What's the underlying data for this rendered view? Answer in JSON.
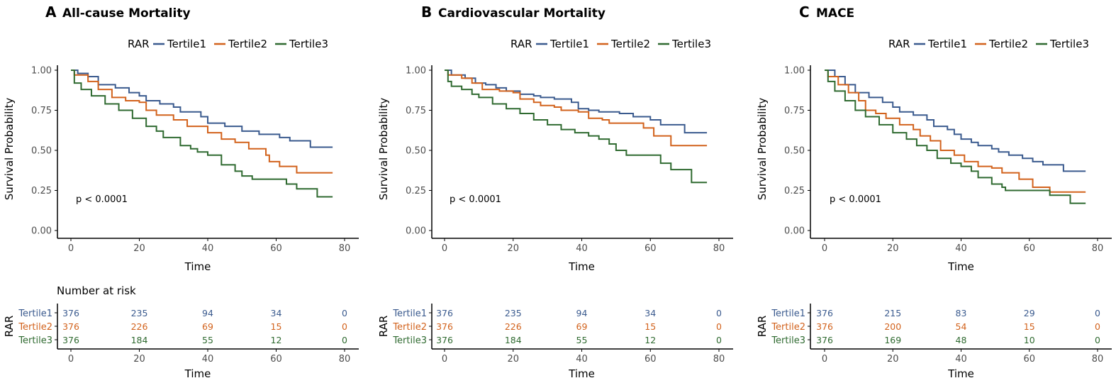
{
  "colors": {
    "Tertile1": "#3a5a8e",
    "Tertile2": "#d2621c",
    "Tertile3": "#2f6a30"
  },
  "chart_data": [
    {
      "type": "line",
      "panel_letter": "A",
      "title": "All-cause Mortality",
      "legend_title": "RAR",
      "legend_placement": "top",
      "xlabel": "Time",
      "ylabel": "Survival Probability",
      "xlim": [
        0,
        80
      ],
      "ylim": [
        0,
        1
      ],
      "xticks": [
        "0",
        "20",
        "40",
        "60",
        "80"
      ],
      "yticks": [
        "0.00",
        "0.25",
        "0.50",
        "0.75",
        "1.00"
      ],
      "pvalue": "p < 0.0001",
      "end_time": 76.5,
      "series": [
        {
          "name": "Tertile1",
          "steps": [
            [
              0,
              1
            ],
            [
              2,
              0.98
            ],
            [
              5,
              0.96
            ],
            [
              8,
              0.91
            ],
            [
              13,
              0.89
            ],
            [
              17,
              0.86
            ],
            [
              20,
              0.84
            ],
            [
              22,
              0.81
            ],
            [
              26,
              0.79
            ],
            [
              30,
              0.77
            ],
            [
              32,
              0.74
            ],
            [
              38,
              0.71
            ],
            [
              40,
              0.67
            ],
            [
              45,
              0.65
            ],
            [
              50,
              0.62
            ],
            [
              55,
              0.6
            ],
            [
              61,
              0.58
            ],
            [
              64,
              0.56
            ],
            [
              70,
              0.52
            ]
          ]
        },
        {
          "name": "Tertile2",
          "steps": [
            [
              0,
              1
            ],
            [
              1,
              0.97
            ],
            [
              5,
              0.93
            ],
            [
              8,
              0.88
            ],
            [
              12,
              0.83
            ],
            [
              16,
              0.81
            ],
            [
              20,
              0.8
            ],
            [
              22,
              0.75
            ],
            [
              25,
              0.72
            ],
            [
              30,
              0.69
            ],
            [
              34,
              0.65
            ],
            [
              40,
              0.61
            ],
            [
              44,
              0.57
            ],
            [
              48,
              0.55
            ],
            [
              52,
              0.51
            ],
            [
              57,
              0.47
            ],
            [
              58,
              0.43
            ],
            [
              61,
              0.4
            ],
            [
              66,
              0.36
            ]
          ]
        },
        {
          "name": "Tertile3",
          "steps": [
            [
              0,
              1
            ],
            [
              1,
              0.92
            ],
            [
              3,
              0.88
            ],
            [
              6,
              0.84
            ],
            [
              10,
              0.79
            ],
            [
              14,
              0.75
            ],
            [
              18,
              0.7
            ],
            [
              22,
              0.65
            ],
            [
              25,
              0.62
            ],
            [
              27,
              0.58
            ],
            [
              32,
              0.53
            ],
            [
              35,
              0.51
            ],
            [
              37,
              0.49
            ],
            [
              40,
              0.47
            ],
            [
              44,
              0.41
            ],
            [
              48,
              0.37
            ],
            [
              50,
              0.34
            ],
            [
              53,
              0.32
            ],
            [
              63,
              0.29
            ],
            [
              66,
              0.26
            ],
            [
              72,
              0.21
            ]
          ]
        }
      ],
      "risk_table": {
        "title": "Number at risk",
        "ylabel": "RAR",
        "xlabel": "Time",
        "times": [
          "0",
          "20",
          "40",
          "60",
          "80"
        ],
        "rows": [
          {
            "name": "Tertile1",
            "values": [
              "376",
              "235",
              "94",
              "34",
              "0"
            ]
          },
          {
            "name": "Tertile2",
            "values": [
              "376",
              "226",
              "69",
              "15",
              "0"
            ]
          },
          {
            "name": "Tertile3",
            "values": [
              "376",
              "184",
              "55",
              "12",
              "0"
            ]
          }
        ]
      }
    },
    {
      "type": "line",
      "panel_letter": "B",
      "title": "Cardiovascular Mortality",
      "legend_title": "RAR",
      "legend_placement": "top",
      "xlabel": "Time",
      "ylabel": "Survival Probability",
      "xlim": [
        0,
        80
      ],
      "ylim": [
        0,
        1
      ],
      "xticks": [
        "0",
        "20",
        "40",
        "60",
        "80"
      ],
      "yticks": [
        "0.00",
        "0.25",
        "0.50",
        "0.75",
        "1.00"
      ],
      "pvalue": "p < 0.0001",
      "end_time": 76.5,
      "series": [
        {
          "name": "Tertile1",
          "steps": [
            [
              0,
              1
            ],
            [
              2,
              0.97
            ],
            [
              6,
              0.95
            ],
            [
              9,
              0.92
            ],
            [
              12,
              0.91
            ],
            [
              15,
              0.89
            ],
            [
              18,
              0.87
            ],
            [
              22,
              0.85
            ],
            [
              26,
              0.84
            ],
            [
              28,
              0.83
            ],
            [
              32,
              0.82
            ],
            [
              37,
              0.8
            ],
            [
              39,
              0.76
            ],
            [
              42,
              0.75
            ],
            [
              45,
              0.74
            ],
            [
              51,
              0.73
            ],
            [
              55,
              0.71
            ],
            [
              60,
              0.69
            ],
            [
              63,
              0.66
            ],
            [
              70,
              0.61
            ]
          ]
        },
        {
          "name": "Tertile2",
          "steps": [
            [
              0,
              1
            ],
            [
              1,
              0.97
            ],
            [
              5,
              0.95
            ],
            [
              8,
              0.92
            ],
            [
              11,
              0.88
            ],
            [
              16,
              0.87
            ],
            [
              20,
              0.86
            ],
            [
              22,
              0.82
            ],
            [
              26,
              0.8
            ],
            [
              28,
              0.78
            ],
            [
              32,
              0.77
            ],
            [
              34,
              0.75
            ],
            [
              39,
              0.74
            ],
            [
              42,
              0.7
            ],
            [
              46,
              0.69
            ],
            [
              48,
              0.67
            ],
            [
              58,
              0.64
            ],
            [
              61,
              0.59
            ],
            [
              66,
              0.53
            ]
          ]
        },
        {
          "name": "Tertile3",
          "steps": [
            [
              0,
              1
            ],
            [
              1,
              0.93
            ],
            [
              2,
              0.9
            ],
            [
              5,
              0.88
            ],
            [
              8,
              0.85
            ],
            [
              10,
              0.83
            ],
            [
              14,
              0.79
            ],
            [
              18,
              0.76
            ],
            [
              22,
              0.73
            ],
            [
              26,
              0.69
            ],
            [
              30,
              0.66
            ],
            [
              34,
              0.63
            ],
            [
              38,
              0.61
            ],
            [
              42,
              0.59
            ],
            [
              45,
              0.57
            ],
            [
              48,
              0.54
            ],
            [
              50,
              0.5
            ],
            [
              53,
              0.47
            ],
            [
              63,
              0.42
            ],
            [
              66,
              0.38
            ],
            [
              72,
              0.3
            ]
          ]
        }
      ],
      "risk_table": {
        "title": "",
        "ylabel": "RAR",
        "xlabel": "Time",
        "times": [
          "0",
          "20",
          "40",
          "60",
          "80"
        ],
        "rows": [
          {
            "name": "Tertile1",
            "values": [
              "376",
              "235",
              "94",
              "34",
              "0"
            ]
          },
          {
            "name": "Tertile2",
            "values": [
              "376",
              "226",
              "69",
              "15",
              "0"
            ]
          },
          {
            "name": "Tertile3",
            "values": [
              "376",
              "184",
              "55",
              "12",
              "0"
            ]
          }
        ]
      }
    },
    {
      "type": "line",
      "panel_letter": "C",
      "title": "MACE",
      "legend_title": "RAR",
      "legend_placement": "top",
      "xlabel": "Time",
      "ylabel": "Survival Probability",
      "xlim": [
        0,
        80
      ],
      "ylim": [
        0,
        1
      ],
      "xticks": [
        "0",
        "20",
        "40",
        "60",
        "80"
      ],
      "yticks": [
        "0.00",
        "0.25",
        "0.50",
        "0.75",
        "1.00"
      ],
      "pvalue": "p < 0.0001",
      "end_time": 76.5,
      "series": [
        {
          "name": "Tertile1",
          "steps": [
            [
              0,
              1
            ],
            [
              3,
              0.96
            ],
            [
              6,
              0.91
            ],
            [
              9,
              0.86
            ],
            [
              13,
              0.83
            ],
            [
              17,
              0.8
            ],
            [
              20,
              0.77
            ],
            [
              22,
              0.74
            ],
            [
              26,
              0.72
            ],
            [
              30,
              0.69
            ],
            [
              32,
              0.65
            ],
            [
              36,
              0.63
            ],
            [
              38,
              0.6
            ],
            [
              40,
              0.57
            ],
            [
              43,
              0.55
            ],
            [
              45,
              0.53
            ],
            [
              49,
              0.51
            ],
            [
              51,
              0.49
            ],
            [
              54,
              0.47
            ],
            [
              58,
              0.45
            ],
            [
              61,
              0.43
            ],
            [
              64,
              0.41
            ],
            [
              70,
              0.37
            ]
          ]
        },
        {
          "name": "Tertile2",
          "steps": [
            [
              0,
              1
            ],
            [
              1,
              0.96
            ],
            [
              4,
              0.91
            ],
            [
              7,
              0.86
            ],
            [
              10,
              0.81
            ],
            [
              12,
              0.75
            ],
            [
              15,
              0.73
            ],
            [
              18,
              0.7
            ],
            [
              22,
              0.66
            ],
            [
              26,
              0.63
            ],
            [
              28,
              0.59
            ],
            [
              31,
              0.56
            ],
            [
              34,
              0.5
            ],
            [
              38,
              0.47
            ],
            [
              41,
              0.43
            ],
            [
              45,
              0.4
            ],
            [
              49,
              0.39
            ],
            [
              52,
              0.36
            ],
            [
              57,
              0.32
            ],
            [
              61,
              0.27
            ],
            [
              66,
              0.24
            ]
          ]
        },
        {
          "name": "Tertile3",
          "steps": [
            [
              0,
              1
            ],
            [
              1,
              0.93
            ],
            [
              3,
              0.87
            ],
            [
              6,
              0.81
            ],
            [
              9,
              0.75
            ],
            [
              12,
              0.71
            ],
            [
              16,
              0.66
            ],
            [
              20,
              0.61
            ],
            [
              24,
              0.57
            ],
            [
              27,
              0.53
            ],
            [
              30,
              0.5
            ],
            [
              33,
              0.45
            ],
            [
              37,
              0.42
            ],
            [
              40,
              0.4
            ],
            [
              43,
              0.37
            ],
            [
              45,
              0.33
            ],
            [
              49,
              0.29
            ],
            [
              52,
              0.27
            ],
            [
              53,
              0.25
            ],
            [
              66,
              0.22
            ],
            [
              72,
              0.17
            ]
          ]
        }
      ],
      "risk_table": {
        "title": "",
        "ylabel": "RAR",
        "xlabel": "Time",
        "times": [
          "0",
          "20",
          "40",
          "60",
          "80"
        ],
        "rows": [
          {
            "name": "Tertile1",
            "values": [
              "376",
              "215",
              "83",
              "29",
              "0"
            ]
          },
          {
            "name": "Tertile2",
            "values": [
              "376",
              "200",
              "54",
              "15",
              "0"
            ]
          },
          {
            "name": "Tertile3",
            "values": [
              "376",
              "169",
              "48",
              "10",
              "0"
            ]
          }
        ]
      }
    }
  ]
}
